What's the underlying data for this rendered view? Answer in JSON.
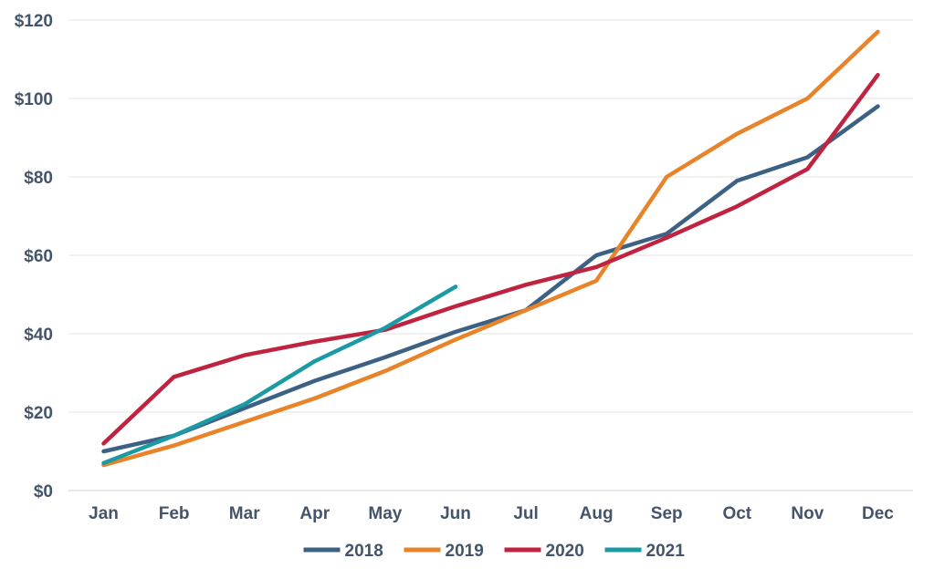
{
  "chart_data": {
    "type": "line",
    "categories": [
      "Jan",
      "Feb",
      "Mar",
      "Apr",
      "May",
      "Jun",
      "Jul",
      "Aug",
      "Sep",
      "Oct",
      "Nov",
      "Dec"
    ],
    "ylim": [
      0,
      120
    ],
    "yticks": [
      0,
      20,
      40,
      60,
      80,
      100,
      120
    ],
    "ytick_labels": [
      "$0",
      "$20",
      "$40",
      "$60",
      "$80",
      "$100",
      "$120"
    ],
    "grid": true,
    "legend_position": "bottom",
    "series": [
      {
        "name": "2018",
        "color": "#3d6185",
        "values": [
          10,
          14,
          21,
          28,
          34,
          40.5,
          46,
          60,
          65.5,
          79,
          85,
          98
        ]
      },
      {
        "name": "2019",
        "color": "#e8832a",
        "values": [
          6.5,
          11.5,
          17.5,
          23.5,
          30.5,
          38.5,
          46,
          53.5,
          80,
          91,
          100,
          117
        ]
      },
      {
        "name": "2020",
        "color": "#c0233f",
        "values": [
          12,
          29,
          34.5,
          38,
          41,
          47,
          52.5,
          57,
          64.5,
          72.5,
          82,
          106
        ]
      },
      {
        "name": "2021",
        "color": "#1b9aa3",
        "values": [
          7,
          14,
          22,
          33,
          41.5,
          52,
          null,
          null,
          null,
          null,
          null,
          null
        ]
      }
    ]
  }
}
